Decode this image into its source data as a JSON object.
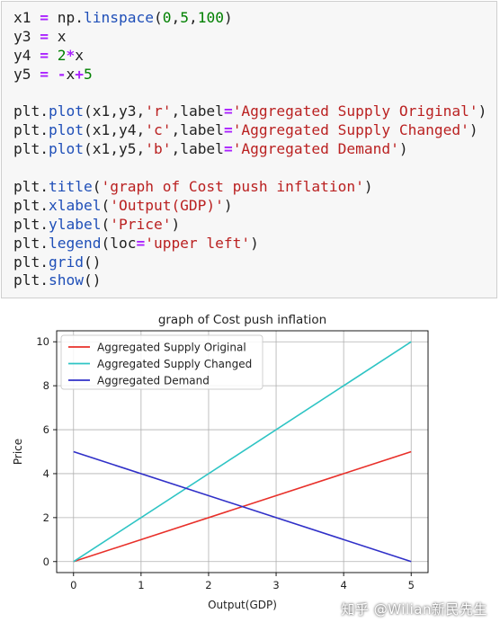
{
  "code": {
    "lines": [
      [
        [
          "x1 ",
          ""
        ],
        [
          "=",
          "op"
        ],
        [
          " np.",
          ""
        ],
        [
          "linspace",
          "fn"
        ],
        [
          "(",
          ""
        ],
        [
          "0",
          "num"
        ],
        [
          ",",
          ""
        ],
        [
          "5",
          "num"
        ],
        [
          ",",
          ""
        ],
        [
          "100",
          "num"
        ],
        [
          ")",
          ""
        ]
      ],
      [
        [
          "y3 ",
          ""
        ],
        [
          "=",
          "op"
        ],
        [
          " x",
          ""
        ]
      ],
      [
        [
          "y4 ",
          ""
        ],
        [
          "=",
          "op"
        ],
        [
          " ",
          ""
        ],
        [
          "2",
          "num"
        ],
        [
          "*",
          "op"
        ],
        [
          "x",
          ""
        ]
      ],
      [
        [
          "y5 ",
          ""
        ],
        [
          "=",
          "op"
        ],
        [
          " ",
          ""
        ],
        [
          "-",
          "op"
        ],
        [
          "x",
          ""
        ],
        [
          "+",
          "op"
        ],
        [
          "5",
          "num"
        ]
      ],
      [],
      [
        [
          "plt.",
          ""
        ],
        [
          "plot",
          "fn"
        ],
        [
          "(x1,y3,",
          ""
        ],
        [
          "'r'",
          "str"
        ],
        [
          ",label",
          ""
        ],
        [
          "=",
          "op"
        ],
        [
          "'Aggregated Supply Original'",
          "str"
        ],
        [
          ")",
          ""
        ]
      ],
      [
        [
          "plt.",
          ""
        ],
        [
          "plot",
          "fn"
        ],
        [
          "(x1,y4,",
          ""
        ],
        [
          "'c'",
          "str"
        ],
        [
          ",label",
          ""
        ],
        [
          "=",
          "op"
        ],
        [
          "'Aggregated Supply Changed'",
          "str"
        ],
        [
          ")",
          ""
        ]
      ],
      [
        [
          "plt.",
          ""
        ],
        [
          "plot",
          "fn"
        ],
        [
          "(x1,y5,",
          ""
        ],
        [
          "'b'",
          "str"
        ],
        [
          ",label",
          ""
        ],
        [
          "=",
          "op"
        ],
        [
          "'Aggregated Demand'",
          "str"
        ],
        [
          ")",
          ""
        ]
      ],
      [],
      [
        [
          "plt.",
          ""
        ],
        [
          "title",
          "fn"
        ],
        [
          "(",
          ""
        ],
        [
          "'graph of Cost push inflation'",
          "str"
        ],
        [
          ")",
          ""
        ]
      ],
      [
        [
          "plt.",
          ""
        ],
        [
          "xlabel",
          "fn"
        ],
        [
          "(",
          ""
        ],
        [
          "'Output(GDP)'",
          "str"
        ],
        [
          ")",
          ""
        ]
      ],
      [
        [
          "plt.",
          ""
        ],
        [
          "ylabel",
          "fn"
        ],
        [
          "(",
          ""
        ],
        [
          "'Price'",
          "str"
        ],
        [
          ")",
          ""
        ]
      ],
      [
        [
          "plt.",
          ""
        ],
        [
          "legend",
          "fn"
        ],
        [
          "(loc",
          ""
        ],
        [
          "=",
          "op"
        ],
        [
          "'upper left'",
          "str"
        ],
        [
          ")",
          ""
        ]
      ],
      [
        [
          "plt.",
          ""
        ],
        [
          "grid",
          "fn"
        ],
        [
          "()",
          ""
        ]
      ],
      [
        [
          "plt.",
          ""
        ],
        [
          "show",
          "fn"
        ],
        [
          "()",
          ""
        ]
      ]
    ]
  },
  "chart_data": {
    "type": "line",
    "title": "graph of Cost push inflation",
    "xlabel": "Output(GDP)",
    "ylabel": "Price",
    "xlim": [
      -0.25,
      5.25
    ],
    "ylim": [
      -0.5,
      10.5
    ],
    "xticks": [
      0,
      1,
      2,
      3,
      4,
      5
    ],
    "yticks": [
      0,
      2,
      4,
      6,
      8,
      10
    ],
    "grid": true,
    "legend_loc": "upper left",
    "series": [
      {
        "name": "Aggregated Supply Original",
        "color": "#e8302a",
        "x": [
          0,
          5
        ],
        "y": [
          0,
          5
        ]
      },
      {
        "name": "Aggregated Supply Changed",
        "color": "#2ec4c4",
        "x": [
          0,
          5
        ],
        "y": [
          0,
          10
        ]
      },
      {
        "name": "Aggregated Demand",
        "color": "#3030c8",
        "x": [
          0,
          5
        ],
        "y": [
          5,
          0
        ]
      }
    ]
  },
  "watermark": "知乎 @Wilian新民先生"
}
